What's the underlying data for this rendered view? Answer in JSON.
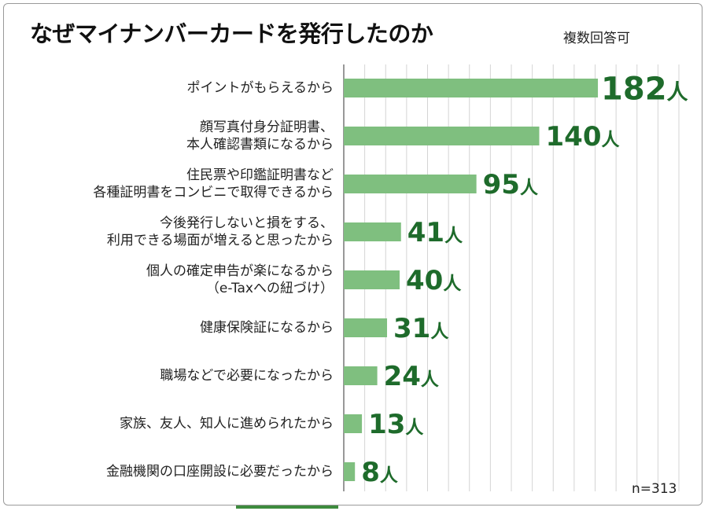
{
  "chart_data": {
    "type": "bar",
    "orientation": "horizontal",
    "title": "なぜマイナンバーカードを発行したのか",
    "subtitle": "複数回答可",
    "note": "n=313",
    "unit": "人",
    "categories": [
      [
        "ポイントがもらえるから"
      ],
      [
        "顔写真付身分証明書、",
        "本人確認書類になるから"
      ],
      [
        "住民票や印鑑証明書など",
        "各種証明書をコンビニで取得できるから"
      ],
      [
        "今後発行しないと損をする、",
        "利用できる場面が増えると思ったから"
      ],
      [
        "個人の確定申告が楽になるから",
        "（e-Taxへの紐づけ）"
      ],
      [
        "健康保険証になるから"
      ],
      [
        "職場などで必要になったから"
      ],
      [
        "家族、友人、知人に進められたから"
      ],
      [
        "金融機関の口座開設に必要だったから"
      ]
    ],
    "values": [
      182,
      140,
      95,
      41,
      40,
      31,
      24,
      13,
      8
    ],
    "xlim": [
      0,
      200
    ],
    "grid": true,
    "bar_color": "#7fbf7f",
    "label_color": "#1e6b2b"
  }
}
